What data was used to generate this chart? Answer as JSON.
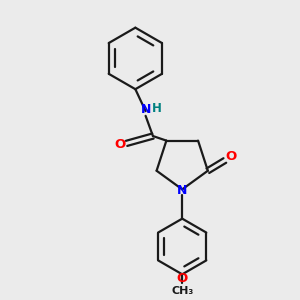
{
  "background_color": "#ebebeb",
  "bond_color": "#1a1a1a",
  "N_color": "#0000ff",
  "O_color": "#ff0000",
  "H_color": "#008080",
  "line_width": 1.6,
  "figsize": [
    3.0,
    3.0
  ],
  "dpi": 100,
  "xlim": [
    0,
    10
  ],
  "ylim": [
    0,
    10
  ]
}
